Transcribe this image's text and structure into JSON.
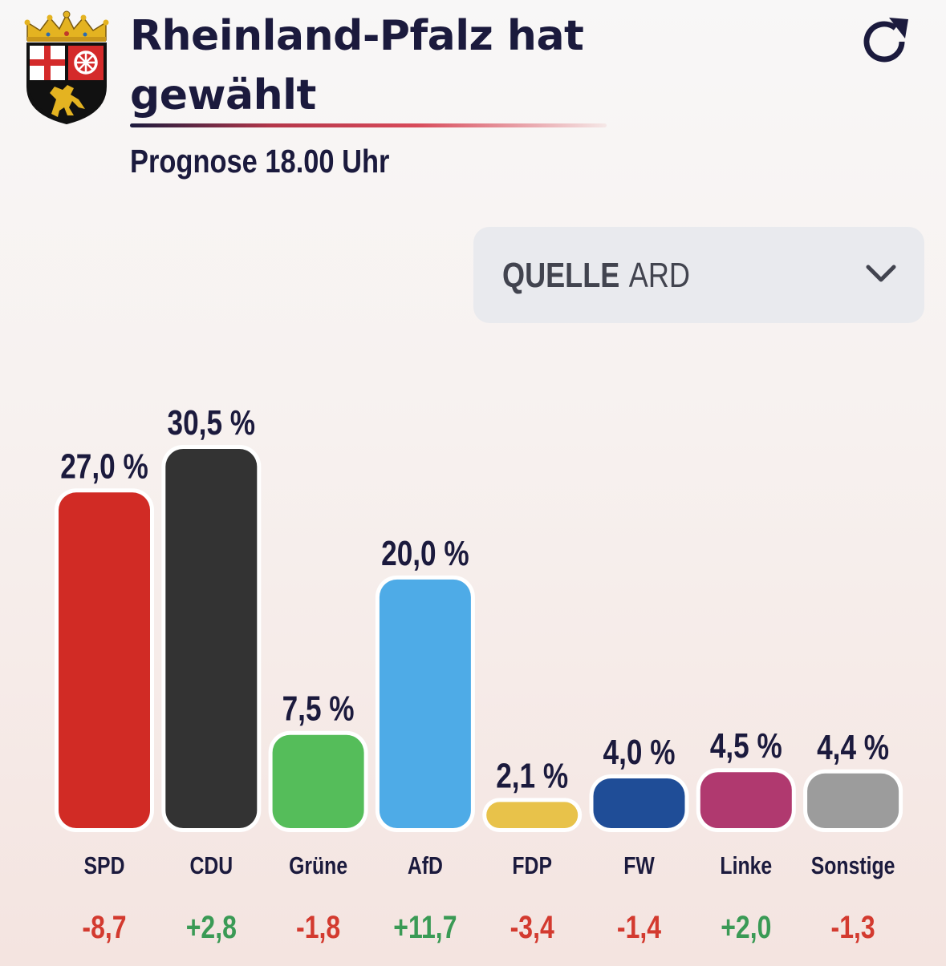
{
  "header": {
    "title": "Rheinland-Pfalz hat gewählt",
    "subtitle": "Prognose 18.00 Uhr",
    "crest_icon": "rheinland-pfalz-coat-of-arms-icon",
    "refresh_icon": "refresh-icon"
  },
  "source_select": {
    "label": "QUELLE",
    "value": "ARD",
    "icon": "chevron-down-icon"
  },
  "chart_data": {
    "type": "bar",
    "categories": [
      "SPD",
      "CDU",
      "Grüne",
      "AfD",
      "FDP",
      "FW",
      "Linke",
      "Sonstige"
    ],
    "values": [
      27.0,
      30.5,
      7.5,
      20.0,
      2.1,
      4.0,
      4.5,
      4.4
    ],
    "value_labels": [
      "27,0 %",
      "30,5 %",
      "7,5 %",
      "20,0 %",
      "2,1 %",
      "4,0 %",
      "4,5 %",
      "4,4 %"
    ],
    "changes": [
      -8.7,
      2.8,
      -1.8,
      11.7,
      -3.4,
      -1.4,
      2.0,
      -1.3
    ],
    "change_labels": [
      "-8,7",
      "+2,8",
      "-1,8",
      "+11,7",
      "-3,4",
      "-1,4",
      "+2,0",
      "-1,3"
    ],
    "colors": [
      "#d12b25",
      "#333333",
      "#55bd5a",
      "#4eabe7",
      "#e8c24a",
      "#1f4d97",
      "#b0396f",
      "#9c9c9c"
    ],
    "positive_color": "#3a9a55",
    "negative_color": "#d33a2f",
    "title": "",
    "xlabel": "",
    "ylabel": "",
    "ylim": [
      0,
      30.5
    ]
  }
}
